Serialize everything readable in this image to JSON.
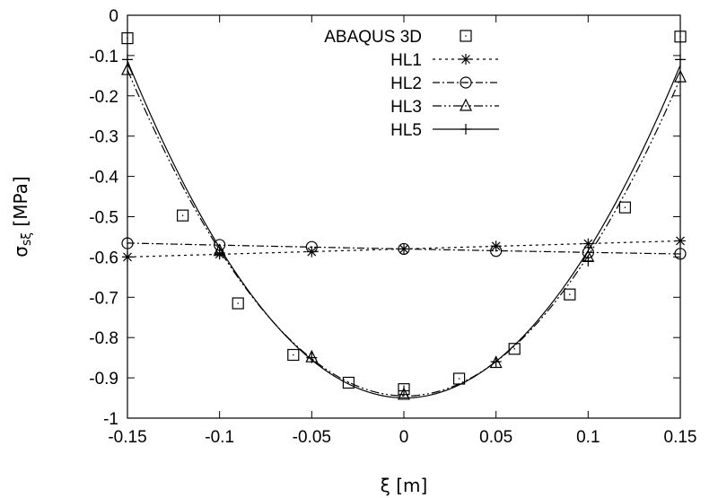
{
  "chart_data": {
    "type": "line",
    "xlabel": "ξ [m]",
    "ylabel_main": "σ",
    "ylabel_sub": "sξ",
    "ylabel_unit": " [MPa]",
    "xlim": [
      -0.15,
      0.15
    ],
    "ylim": [
      -1,
      0
    ],
    "x_ticks": [
      {
        "v": -0.15,
        "label": "-0.15"
      },
      {
        "v": -0.1,
        "label": "-0.1"
      },
      {
        "v": -0.05,
        "label": "-0.05"
      },
      {
        "v": 0,
        "label": "0"
      },
      {
        "v": 0.05,
        "label": "0.05"
      },
      {
        "v": 0.1,
        "label": "0.1"
      },
      {
        "v": 0.15,
        "label": "0.15"
      }
    ],
    "y_ticks": [
      {
        "v": 0,
        "label": "0"
      },
      {
        "v": -0.1,
        "label": "-0.1"
      },
      {
        "v": -0.2,
        "label": "-0.2"
      },
      {
        "v": -0.3,
        "label": "-0.3"
      },
      {
        "v": -0.4,
        "label": "-0.4"
      },
      {
        "v": -0.5,
        "label": "-0.5"
      },
      {
        "v": -0.6,
        "label": "-0.6"
      },
      {
        "v": -0.7,
        "label": "-0.7"
      },
      {
        "v": -0.8,
        "label": "-0.8"
      },
      {
        "v": -0.9,
        "label": "-0.9"
      },
      {
        "v": -1,
        "label": "-1"
      }
    ],
    "legend_position": "top-center",
    "grid": false,
    "series": [
      {
        "name": "ABAQUS 3D",
        "marker": "square",
        "dash": "none",
        "show_line": false,
        "points": [
          [
            -0.15,
            -0.057
          ],
          [
            -0.12,
            -0.497
          ],
          [
            -0.09,
            -0.715
          ],
          [
            -0.06,
            -0.843
          ],
          [
            -0.03,
            -0.912
          ],
          [
            0,
            -0.928
          ],
          [
            0.03,
            -0.902
          ],
          [
            0.06,
            -0.828
          ],
          [
            0.09,
            -0.693
          ],
          [
            0.12,
            -0.477
          ],
          [
            0.15,
            -0.053
          ]
        ]
      },
      {
        "name": "HL1",
        "marker": "asterisk",
        "dash": "3,4",
        "show_line": true,
        "points": [
          [
            -0.15,
            -0.6
          ],
          [
            -0.1,
            -0.593
          ],
          [
            -0.05,
            -0.587
          ],
          [
            0,
            -0.58
          ],
          [
            0.05,
            -0.573
          ],
          [
            0.1,
            -0.567
          ],
          [
            0.15,
            -0.56
          ]
        ]
      },
      {
        "name": "HL2",
        "marker": "circle",
        "dash": "8,3,2,3",
        "show_line": true,
        "points": [
          [
            -0.15,
            -0.566
          ],
          [
            -0.1,
            -0.57
          ],
          [
            -0.05,
            -0.575
          ],
          [
            0,
            -0.58
          ],
          [
            0.05,
            -0.585
          ],
          [
            0.1,
            -0.589
          ],
          [
            0.15,
            -0.592
          ]
        ]
      },
      {
        "name": "HL3",
        "marker": "triangle",
        "dash": "10,3,2,3,2,3",
        "show_line": true,
        "points": [
          [
            -0.15,
            -0.136
          ],
          [
            -0.1,
            -0.585
          ],
          [
            -0.05,
            -0.849
          ],
          [
            0,
            -0.942
          ],
          [
            0.05,
            -0.863
          ],
          [
            0.1,
            -0.6
          ],
          [
            0.15,
            -0.154
          ]
        ]
      },
      {
        "name": "HL5",
        "marker": "plus",
        "dash": "none",
        "show_line": true,
        "points": [
          [
            -0.15,
            -0.11
          ],
          [
            -0.1,
            -0.59
          ],
          [
            -0.05,
            -0.85
          ],
          [
            0,
            -0.932
          ],
          [
            0.05,
            -0.86
          ],
          [
            0.1,
            -0.61
          ],
          [
            0.15,
            -0.11
          ]
        ]
      }
    ]
  }
}
